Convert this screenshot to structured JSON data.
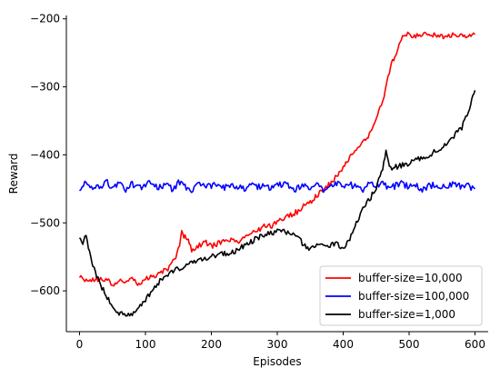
{
  "chart_data": {
    "type": "line",
    "xlabel": "Episodes",
    "ylabel": "Reward",
    "xlim": [
      -20,
      620
    ],
    "ylim": [
      -660,
      -195
    ],
    "xticks": [
      0,
      100,
      200,
      300,
      400,
      500,
      600
    ],
    "yticks": [
      -600,
      -500,
      -400,
      -300,
      -200
    ],
    "xtick_labels": [
      "0",
      "100",
      "200",
      "300",
      "400",
      "500",
      "600"
    ],
    "ytick_labels": [
      "−600",
      "−500",
      "−400",
      "−300",
      "−200"
    ],
    "grid": false,
    "legend_position": "bottom-right",
    "series": [
      {
        "name": "buffer-size=10,000",
        "color": "#ff0000",
        "x": [
          0,
          10,
          20,
          30,
          40,
          50,
          60,
          70,
          80,
          90,
          100,
          110,
          120,
          130,
          140,
          150,
          155,
          160,
          165,
          170,
          180,
          190,
          200,
          210,
          220,
          230,
          240,
          250,
          260,
          270,
          280,
          290,
          300,
          310,
          320,
          330,
          340,
          350,
          360,
          370,
          380,
          390,
          400,
          410,
          420,
          430,
          440,
          450,
          460,
          470,
          475,
          480,
          485,
          490,
          500,
          510,
          520,
          530,
          540,
          550,
          560,
          570,
          580,
          590,
          600
        ],
        "y": [
          -578,
          -586,
          -582,
          -584,
          -583,
          -590,
          -586,
          -588,
          -582,
          -590,
          -582,
          -580,
          -576,
          -570,
          -562,
          -540,
          -515,
          -520,
          -525,
          -540,
          -535,
          -528,
          -535,
          -530,
          -528,
          -525,
          -530,
          -522,
          -515,
          -512,
          -505,
          -505,
          -500,
          -492,
          -488,
          -484,
          -476,
          -470,
          -460,
          -452,
          -442,
          -432,
          -418,
          -405,
          -395,
          -382,
          -370,
          -345,
          -320,
          -280,
          -260,
          -255,
          -240,
          -225,
          -223,
          -224,
          -223,
          -225,
          -222,
          -226,
          -224,
          -225,
          -222,
          -226,
          -223
        ]
      },
      {
        "name": "buffer-size=100,000",
        "color": "#0000ff",
        "x": [
          0,
          10,
          20,
          30,
          40,
          50,
          60,
          70,
          80,
          90,
          100,
          110,
          120,
          130,
          140,
          150,
          160,
          170,
          180,
          190,
          200,
          210,
          220,
          230,
          240,
          250,
          260,
          270,
          280,
          290,
          300,
          310,
          320,
          330,
          340,
          350,
          360,
          370,
          380,
          390,
          400,
          410,
          420,
          430,
          440,
          450,
          460,
          470,
          480,
          490,
          500,
          510,
          520,
          530,
          540,
          550,
          560,
          570,
          580,
          590,
          600
        ],
        "y": [
          -448,
          -442,
          -446,
          -450,
          -440,
          -447,
          -444,
          -451,
          -443,
          -449,
          -445,
          -440,
          -448,
          -444,
          -450,
          -442,
          -447,
          -452,
          -444,
          -448,
          -446,
          -441,
          -449,
          -444,
          -447,
          -450,
          -443,
          -448,
          -445,
          -451,
          -446,
          -442,
          -448,
          -450,
          -444,
          -449,
          -446,
          -452,
          -447,
          -443,
          -448,
          -444,
          -446,
          -450,
          -443,
          -447,
          -444,
          -449,
          -445,
          -441,
          -448,
          -444,
          -450,
          -446,
          -443,
          -449,
          -445,
          -441,
          -448,
          -446,
          -450
        ]
      },
      {
        "name": "buffer-size=1,000",
        "color": "#000000",
        "x": [
          0,
          5,
          10,
          15,
          20,
          30,
          40,
          50,
          60,
          70,
          80,
          90,
          100,
          110,
          120,
          130,
          140,
          150,
          160,
          170,
          180,
          190,
          200,
          210,
          220,
          230,
          240,
          250,
          260,
          270,
          280,
          290,
          300,
          310,
          320,
          330,
          340,
          350,
          360,
          370,
          380,
          390,
          400,
          410,
          420,
          430,
          440,
          450,
          460,
          465,
          470,
          480,
          490,
          500,
          510,
          520,
          530,
          540,
          550,
          560,
          570,
          580,
          590,
          595,
          600
        ],
        "y": [
          -520,
          -530,
          -515,
          -545,
          -560,
          -588,
          -605,
          -625,
          -632,
          -636,
          -634,
          -626,
          -612,
          -600,
          -588,
          -578,
          -572,
          -568,
          -563,
          -558,
          -555,
          -552,
          -550,
          -547,
          -545,
          -543,
          -540,
          -533,
          -528,
          -522,
          -518,
          -515,
          -512,
          -512,
          -516,
          -520,
          -532,
          -538,
          -530,
          -535,
          -532,
          -531,
          -538,
          -525,
          -500,
          -480,
          -465,
          -450,
          -420,
          -395,
          -420,
          -418,
          -415,
          -412,
          -408,
          -405,
          -400,
          -395,
          -388,
          -380,
          -370,
          -360,
          -335,
          -320,
          -305
        ]
      }
    ]
  }
}
